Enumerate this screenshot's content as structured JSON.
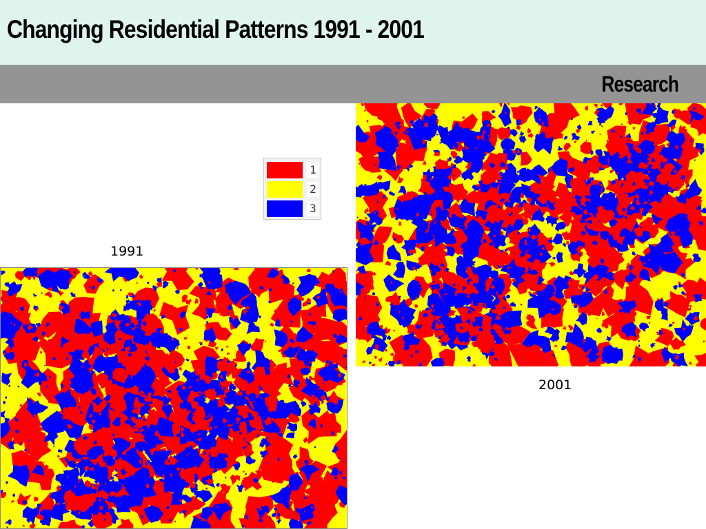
{
  "slide": {
    "title": "Changing Residential Patterns 1991 - 2001",
    "section": "Research"
  },
  "legend": {
    "items": [
      {
        "label": "1",
        "color": "#ff0000"
      },
      {
        "label": "2",
        "color": "#ffff00"
      },
      {
        "label": "3",
        "color": "#0000ff"
      }
    ]
  },
  "maps": [
    {
      "id": "map-1991",
      "caption": "1991"
    },
    {
      "id": "map-2001",
      "caption": "2001"
    }
  ],
  "colors": {
    "class_1": "#ff0000",
    "class_2": "#ffff00",
    "class_3": "#0000ff",
    "title_bar": "#e0f4ee",
    "section_bar": "#949494"
  }
}
